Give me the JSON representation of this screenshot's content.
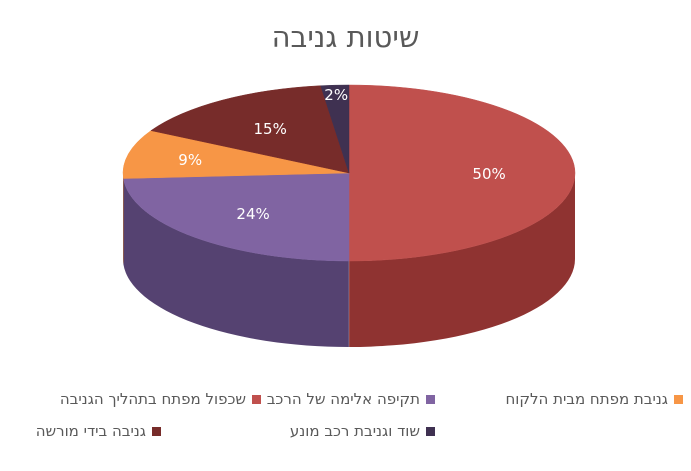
{
  "chart_data": {
    "type": "pie",
    "title": "שיטות גניבה",
    "categories": [
      "שכפול מפתח בתהליך הגניבה",
      "תקיפה אלימה של הרכב",
      "גניבת מפתח מבית הלקוח",
      "גניבה בידי מורשה",
      "שוד וגניבת רכב מונע"
    ],
    "values": [
      50,
      24,
      9,
      15,
      2
    ],
    "data_labels": [
      "50%",
      "24%",
      "9%",
      "15%",
      "2%"
    ],
    "colors": [
      "#c0504d",
      "#8064a2",
      "#f79646",
      "#772c2a",
      "#3f3151"
    ],
    "side_colors": [
      "#8f3331",
      "#554271",
      "#b8651f",
      "#4d1a19",
      "#282036"
    ],
    "style": "3d-pie",
    "legend_position": "bottom"
  }
}
